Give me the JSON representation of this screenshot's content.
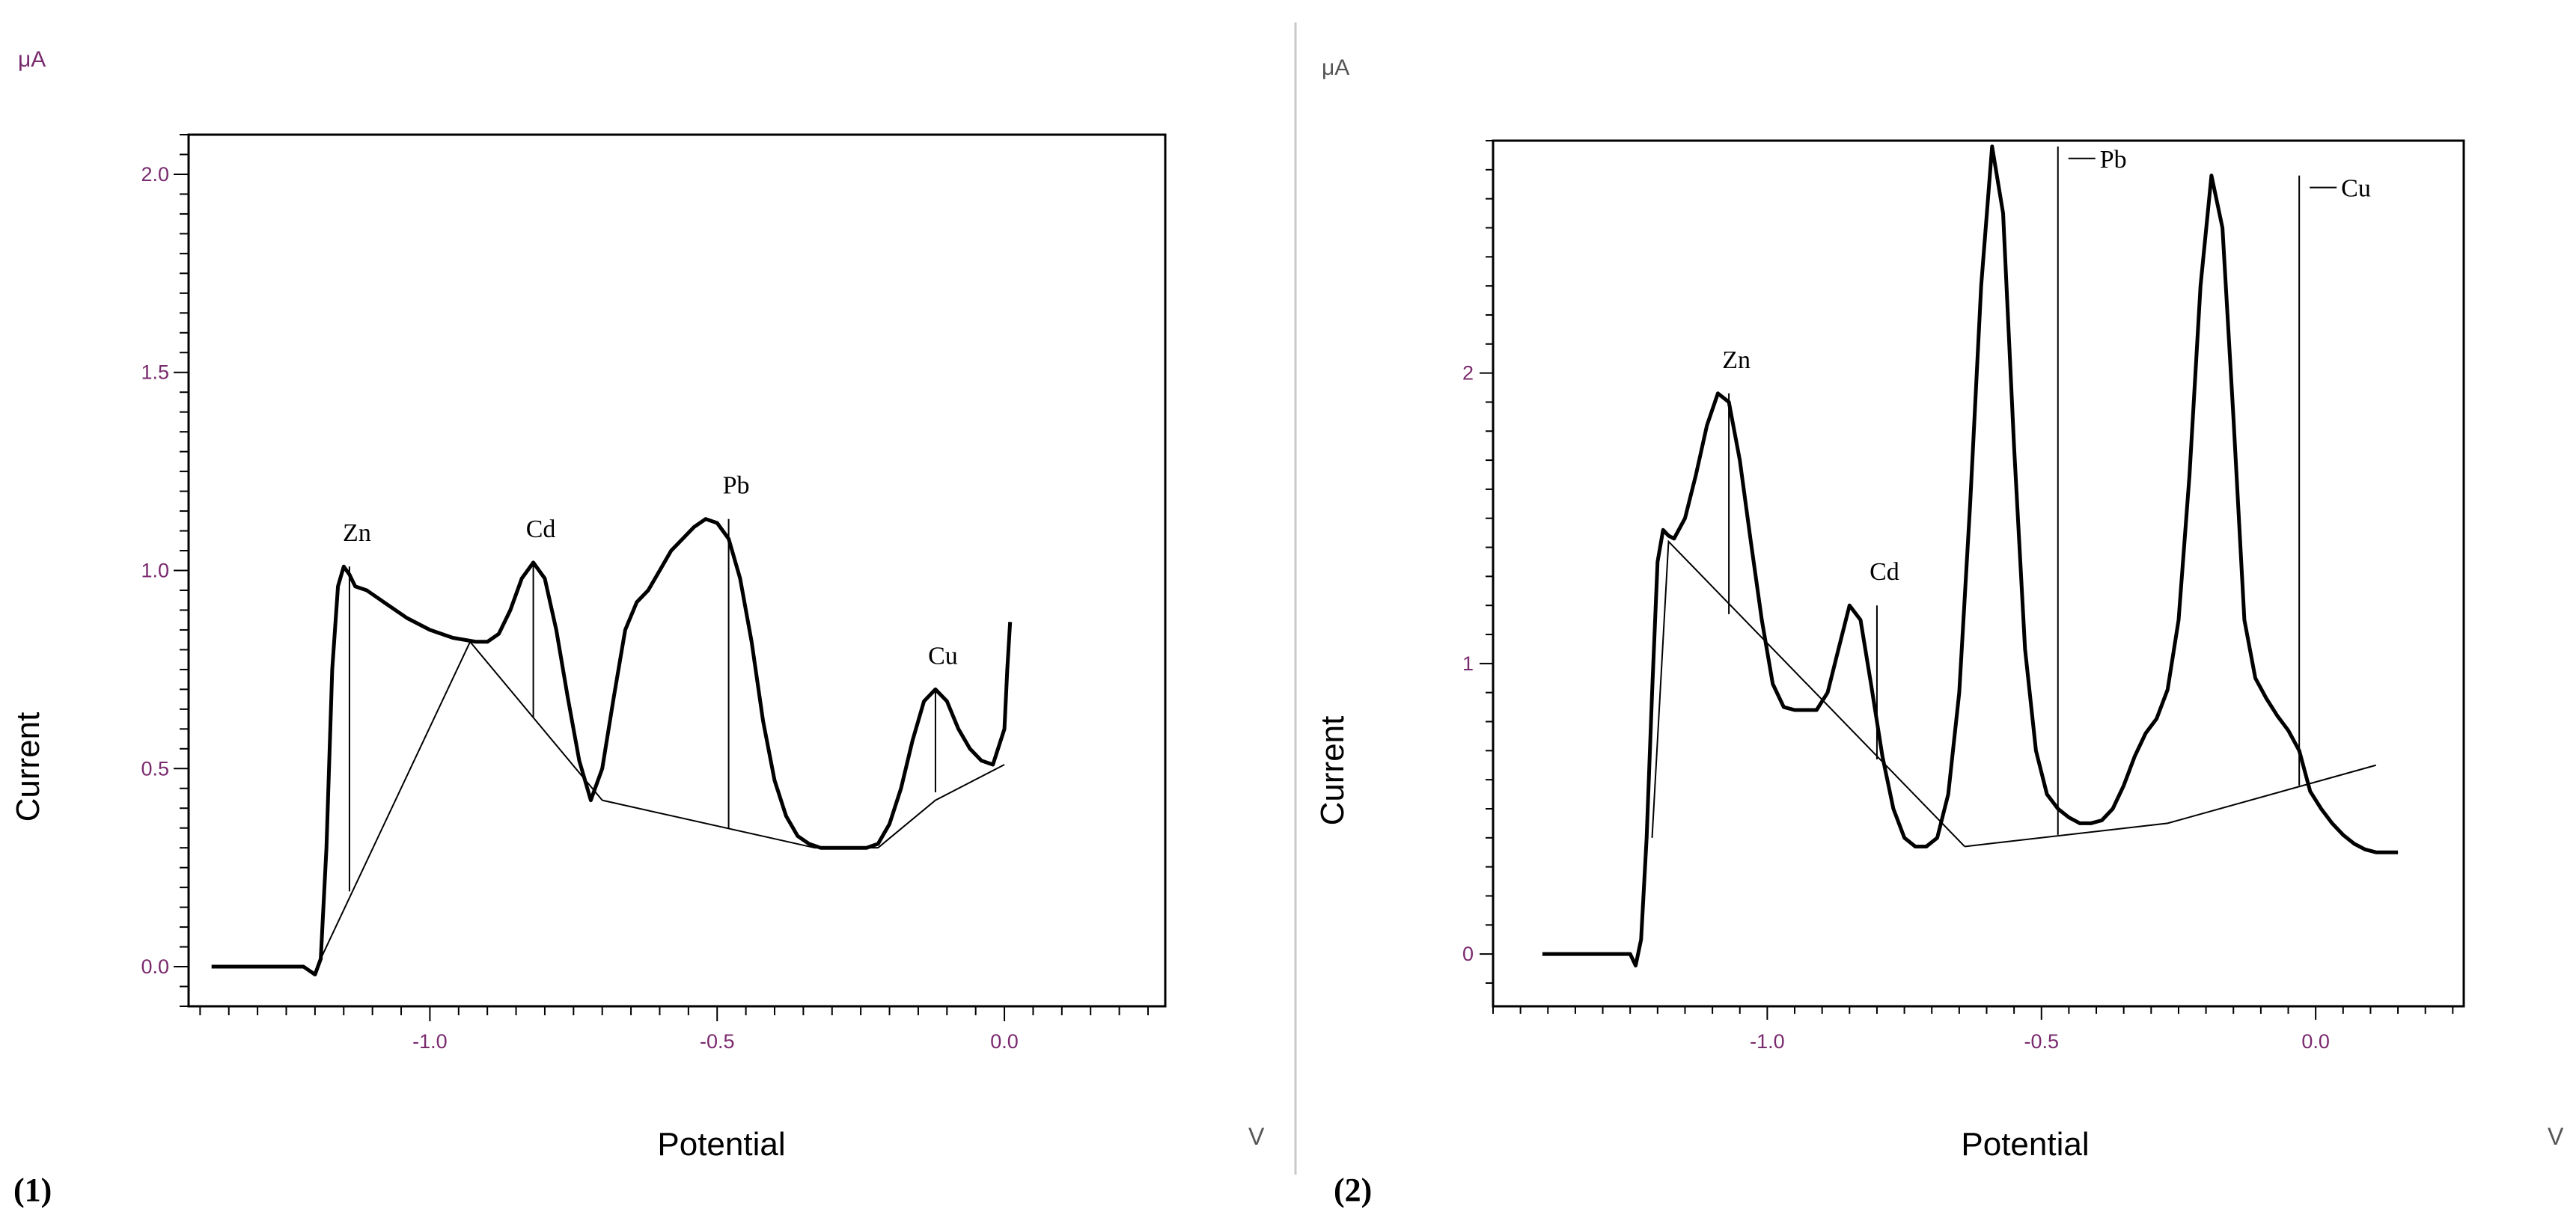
{
  "chart_data": [
    {
      "type": "line",
      "panel_label": "(1)",
      "title": "",
      "xlabel": "Potential",
      "ylabel": "Current",
      "x_unit": "V",
      "y_unit": "μA",
      "xlim": [
        -1.42,
        0.28
      ],
      "ylim": [
        -0.1,
        2.1
      ],
      "xticks": [
        -1.0,
        -0.5,
        0.0
      ],
      "xtick_labels": [
        "-1.0",
        "-0.5",
        "0.0"
      ],
      "yticks": [
        0.0,
        0.5,
        1.0,
        1.5,
        2.0
      ],
      "ytick_labels": [
        "0.0",
        "0.5",
        "1.0",
        "1.5",
        "2.0"
      ],
      "grid": false,
      "tick_label_color": "#7a2a6e",
      "series": [
        {
          "name": "current",
          "x": [
            -1.38,
            -1.32,
            -1.25,
            -1.22,
            -1.2,
            -1.19,
            -1.18,
            -1.17,
            -1.16,
            -1.15,
            -1.14,
            -1.13,
            -1.11,
            -1.08,
            -1.04,
            -1.0,
            -0.96,
            -0.92,
            -0.9,
            -0.88,
            -0.86,
            -0.84,
            -0.82,
            -0.8,
            -0.78,
            -0.76,
            -0.74,
            -0.72,
            -0.7,
            -0.68,
            -0.66,
            -0.64,
            -0.62,
            -0.6,
            -0.58,
            -0.56,
            -0.54,
            -0.52,
            -0.5,
            -0.48,
            -0.46,
            -0.44,
            -0.42,
            -0.4,
            -0.38,
            -0.36,
            -0.34,
            -0.32,
            -0.28,
            -0.24,
            -0.22,
            -0.2,
            -0.18,
            -0.16,
            -0.14,
            -0.12,
            -0.1,
            -0.08,
            -0.06,
            -0.04,
            -0.02,
            0.0,
            0.005,
            0.01
          ],
          "y": [
            0.0,
            0.0,
            0.0,
            0.0,
            -0.02,
            0.02,
            0.3,
            0.75,
            0.96,
            1.01,
            0.99,
            0.96,
            0.95,
            0.92,
            0.88,
            0.85,
            0.83,
            0.82,
            0.82,
            0.84,
            0.9,
            0.98,
            1.02,
            0.98,
            0.85,
            0.68,
            0.52,
            0.42,
            0.5,
            0.68,
            0.85,
            0.92,
            0.95,
            1.0,
            1.05,
            1.08,
            1.11,
            1.13,
            1.12,
            1.08,
            0.98,
            0.82,
            0.62,
            0.47,
            0.38,
            0.33,
            0.31,
            0.3,
            0.3,
            0.3,
            0.31,
            0.36,
            0.45,
            0.57,
            0.67,
            0.7,
            0.67,
            0.6,
            0.55,
            0.52,
            0.51,
            0.6,
            0.75,
            0.87
          ]
        }
      ],
      "baselines": [
        {
          "x": [
            -1.19,
            -0.93,
            -0.7
          ],
          "y": [
            0.02,
            0.82,
            0.42
          ]
        },
        {
          "x": [
            -0.7,
            -0.33,
            -0.22
          ],
          "y": [
            0.42,
            0.3,
            0.3
          ]
        },
        {
          "x": [
            -0.22,
            -0.12,
            0.0
          ],
          "y": [
            0.3,
            0.42,
            0.51
          ]
        }
      ],
      "peaks": [
        {
          "label": "Zn",
          "x": -1.14,
          "top": 1.01,
          "base": 0.19
        },
        {
          "label": "Cd",
          "x": -0.82,
          "top": 1.02,
          "base": 0.63
        },
        {
          "label": "Pb",
          "x": -0.48,
          "top": 1.13,
          "base": 0.35
        },
        {
          "label": "Cu",
          "x": -0.12,
          "top": 0.7,
          "base": 0.44
        }
      ]
    },
    {
      "type": "line",
      "panel_label": "(2)",
      "title": "",
      "xlabel": "Potential",
      "ylabel": "Current",
      "x_unit": "V",
      "y_unit": "μA",
      "xlim": [
        -1.5,
        0.27
      ],
      "ylim": [
        -0.18,
        2.8
      ],
      "xticks": [
        -1.0,
        -0.5,
        0.0
      ],
      "xtick_labels": [
        "-1.0",
        "-0.5",
        "0.0"
      ],
      "yticks": [
        0,
        1,
        2
      ],
      "ytick_labels": [
        "0",
        "1",
        "2"
      ],
      "grid": false,
      "tick_label_color": "#7a2a6e",
      "series": [
        {
          "name": "current",
          "x": [
            -1.41,
            -1.35,
            -1.3,
            -1.27,
            -1.25,
            -1.24,
            -1.23,
            -1.22,
            -1.21,
            -1.2,
            -1.19,
            -1.18,
            -1.17,
            -1.15,
            -1.13,
            -1.11,
            -1.09,
            -1.07,
            -1.05,
            -1.03,
            -1.01,
            -0.99,
            -0.97,
            -0.95,
            -0.93,
            -0.91,
            -0.89,
            -0.87,
            -0.85,
            -0.83,
            -0.81,
            -0.79,
            -0.77,
            -0.75,
            -0.73,
            -0.71,
            -0.69,
            -0.67,
            -0.65,
            -0.63,
            -0.61,
            -0.59,
            -0.57,
            -0.55,
            -0.53,
            -0.51,
            -0.49,
            -0.47,
            -0.45,
            -0.43,
            -0.41,
            -0.39,
            -0.37,
            -0.35,
            -0.33,
            -0.31,
            -0.29,
            -0.27,
            -0.25,
            -0.23,
            -0.21,
            -0.19,
            -0.17,
            -0.15,
            -0.13,
            -0.11,
            -0.09,
            -0.07,
            -0.05,
            -0.03,
            -0.02,
            -0.01,
            0.01,
            0.03,
            0.05,
            0.07,
            0.09,
            0.11,
            0.13,
            0.15
          ],
          "y": [
            0.0,
            0.0,
            0.0,
            0.0,
            0.0,
            -0.04,
            0.05,
            0.4,
            0.9,
            1.35,
            1.46,
            1.44,
            1.43,
            1.5,
            1.65,
            1.82,
            1.93,
            1.9,
            1.7,
            1.42,
            1.15,
            0.93,
            0.85,
            0.84,
            0.84,
            0.84,
            0.9,
            1.05,
            1.2,
            1.15,
            0.92,
            0.68,
            0.5,
            0.4,
            0.37,
            0.37,
            0.4,
            0.55,
            0.9,
            1.55,
            2.3,
            2.78,
            2.55,
            1.75,
            1.05,
            0.7,
            0.55,
            0.5,
            0.47,
            0.45,
            0.45,
            0.46,
            0.5,
            0.58,
            0.68,
            0.76,
            0.81,
            0.91,
            1.15,
            1.65,
            2.3,
            2.68,
            2.5,
            1.85,
            1.15,
            0.95,
            0.88,
            0.82,
            0.77,
            0.7,
            0.63,
            0.56,
            0.5,
            0.45,
            0.41,
            0.38,
            0.36,
            0.35,
            0.35,
            0.35
          ]
        }
      ],
      "baselines": [
        {
          "x": [
            -1.21,
            -1.18,
            -0.64
          ],
          "y": [
            0.4,
            1.42,
            0.37
          ]
        },
        {
          "x": [
            -0.64,
            -0.27,
            0.11
          ],
          "y": [
            0.37,
            0.45,
            0.65
          ]
        }
      ],
      "peaks": [
        {
          "label": "Zn",
          "x": -1.07,
          "top": 1.93,
          "base": 1.17
        },
        {
          "label": "Cd",
          "x": -0.8,
          "top": 1.2,
          "base": 0.67
        },
        {
          "label": "Pb",
          "x": -0.47,
          "top": 2.78,
          "base": 0.41
        },
        {
          "label": "Cu",
          "x": -0.03,
          "top": 2.68,
          "base": 0.58
        }
      ]
    }
  ]
}
